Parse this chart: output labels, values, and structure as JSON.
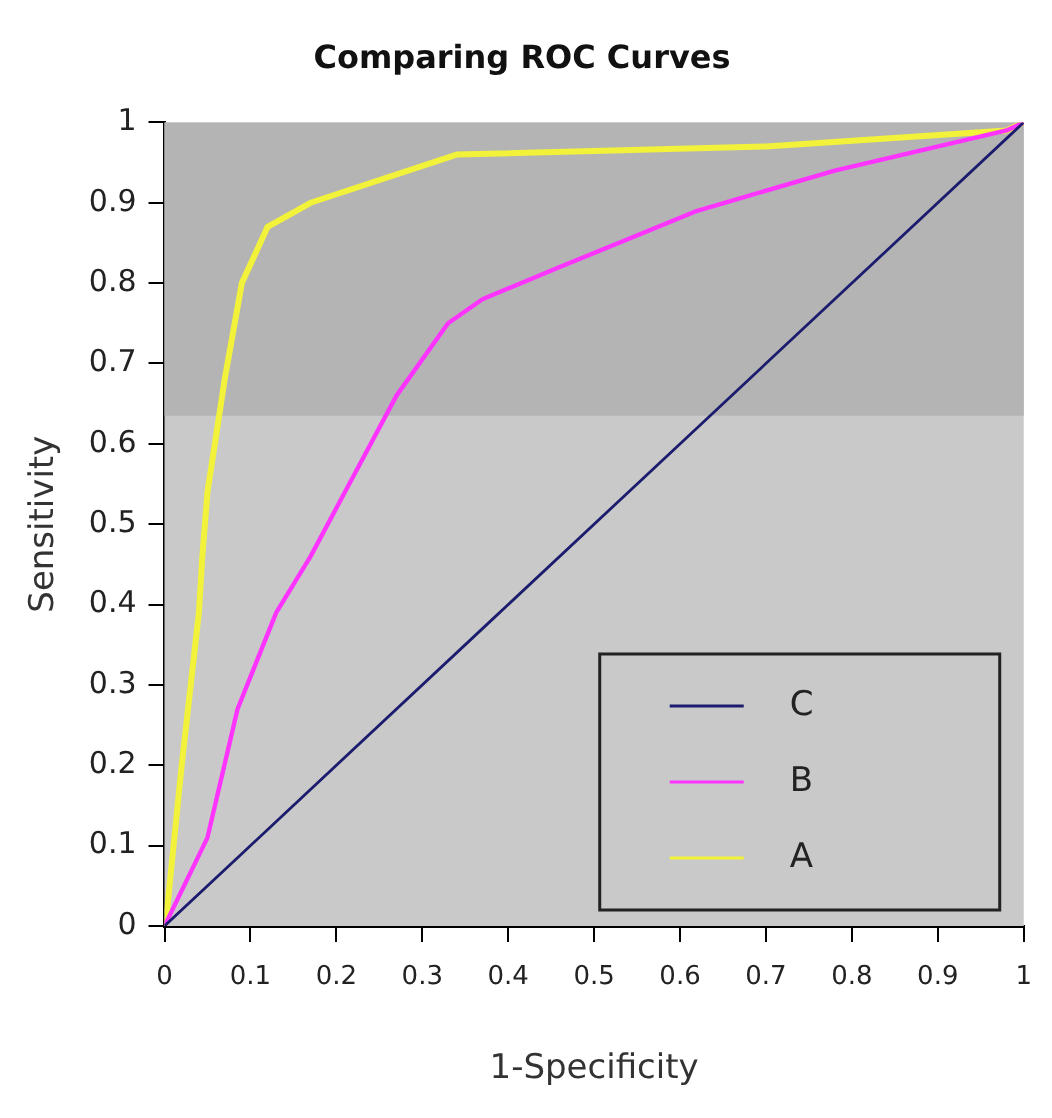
{
  "chart_data": {
    "type": "line",
    "title": "Comparing ROC Curves",
    "xlabel": "1-Specificity",
    "ylabel": "Sensitivity",
    "xlim": [
      0,
      1
    ],
    "ylim": [
      0,
      1
    ],
    "xticks": [
      0,
      0.1,
      0.2,
      0.3,
      0.4,
      0.5,
      0.6,
      0.7,
      0.8,
      0.9,
      1
    ],
    "yticks": [
      0,
      0.1,
      0.2,
      0.3,
      0.4,
      0.5,
      0.6,
      0.7,
      0.8,
      0.9,
      1
    ],
    "grid": false,
    "legend": "bottom right",
    "marker": "none",
    "line_style": "solid",
    "bands": [
      {
        "axis": "y",
        "from": 0.635,
        "to": 1,
        "color": "#b4b4b4"
      }
    ],
    "series": [
      {
        "name": "C",
        "color": "#1c1c6e",
        "x": [
          0,
          0.09,
          0.38,
          0.57,
          0.84,
          1
        ],
        "values": [
          0,
          0.09,
          0.38,
          0.57,
          0.84,
          1
        ]
      },
      {
        "name": "B",
        "color": "#ff33ff",
        "x": [
          0,
          0.05,
          0.085,
          0.13,
          0.17,
          0.21,
          0.27,
          0.33,
          0.37,
          0.46,
          0.62,
          0.78,
          0.98,
          1
        ],
        "values": [
          0,
          0.11,
          0.27,
          0.39,
          0.46,
          0.54,
          0.66,
          0.75,
          0.78,
          0.82,
          0.89,
          0.94,
          0.99,
          1
        ]
      },
      {
        "name": "A",
        "color": "#f2f23a",
        "x": [
          0,
          0.003,
          0.02,
          0.04,
          0.044,
          0.05,
          0.07,
          0.09,
          0.12,
          0.17,
          0.34,
          0.7,
          0.98,
          1
        ],
        "values": [
          0,
          0.02,
          0.2,
          0.39,
          0.46,
          0.54,
          0.68,
          0.8,
          0.87,
          0.9,
          0.96,
          0.97,
          0.99,
          1
        ]
      }
    ]
  }
}
